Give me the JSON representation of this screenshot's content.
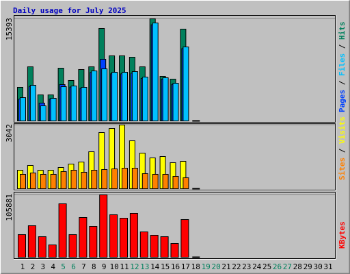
{
  "chart_data": [
    {
      "type": "bar",
      "title": "Daily usage for July 2025",
      "categories": [
        "1",
        "2",
        "3",
        "4",
        "5",
        "6",
        "7",
        "8",
        "9",
        "10",
        "11",
        "12",
        "13",
        "14",
        "15",
        "16",
        "17",
        "18",
        "19",
        "20",
        "21",
        "22",
        "23",
        "24",
        "25",
        "26",
        "27",
        "28",
        "29",
        "30",
        "31"
      ],
      "category_colors": [
        "#000000",
        "#000000",
        "#000000",
        "#000000",
        "#00805c",
        "#00805c",
        "#000000",
        "#000000",
        "#000000",
        "#000000",
        "#000000",
        "#00805c",
        "#00805c",
        "#000000",
        "#000000",
        "#000000",
        "#000000",
        "#000000",
        "#00805c",
        "#00805c",
        "#000000",
        "#000000",
        "#000000",
        "#000000",
        "#000000",
        "#00805c",
        "#00805c",
        "#000000",
        "#000000",
        "#000000",
        "#000000"
      ],
      "ylim": [
        0,
        15393
      ],
      "yticks": [
        15393
      ],
      "legend_separator": " / ",
      "series": [
        {
          "name": "Pages",
          "color": "#0040ff",
          "values": [
            3300,
            5200,
            2686,
            3300,
            5476,
            5100,
            4900,
            7300,
            9298,
            7100,
            7100,
            7200,
            6400,
            14500,
            6300,
            5500,
            10900,
            null,
            null,
            null,
            null,
            null,
            null,
            null,
            null,
            null,
            null,
            null,
            null,
            null,
            null
          ]
        },
        {
          "name": "Files",
          "color": "#00c0ff",
          "values": [
            3512,
            5372,
            2273,
            3409,
            5165,
            5269,
            5062,
            7541,
            7851,
            7335,
            7335,
            7438,
            6612,
            14773,
            6508,
            5682,
            11157,
            null,
            null,
            null,
            null,
            null,
            null,
            null,
            null,
            null,
            null,
            null,
            null,
            null,
            null
          ]
        },
        {
          "name": "Hits",
          "color": "#00805c",
          "values": [
            5062,
            8161,
            3926,
            3926,
            7955,
            6095,
            7748,
            8161,
            13947,
            9814,
            9814,
            9607,
            8161,
            15393,
            6715,
            6302,
            13843,
            null,
            null,
            null,
            null,
            null,
            null,
            null,
            null,
            null,
            null,
            null,
            null,
            null,
            null
          ]
        }
      ]
    },
    {
      "type": "bar",
      "ylim": [
        0,
        3042
      ],
      "yticks": [
        3042
      ],
      "legend_separator": " / ",
      "series": [
        {
          "name": "Sites",
          "color": "#ff8000",
          "values": [
            687,
            752,
            687,
            687,
            818,
            883,
            785,
            883,
            916,
            948,
            981,
            981,
            720,
            687,
            687,
            589,
            523,
            null,
            null,
            null,
            null,
            null,
            null,
            null,
            null,
            null,
            null,
            null,
            null,
            null,
            null
          ]
        },
        {
          "name": "Visits",
          "color": "#ffff00",
          "values": [
            883,
            1112,
            883,
            883,
            1014,
            1178,
            1276,
            1766,
            2682,
            2878,
            3042,
            2289,
            1701,
            1472,
            1537,
            1243,
            1308,
            null,
            null,
            null,
            null,
            null,
            null,
            null,
            null,
            null,
            null,
            null,
            null,
            null,
            null
          ]
        }
      ]
    },
    {
      "type": "bar",
      "ylim": [
        0,
        105881
      ],
      "yticks": [
        105881
      ],
      "series": [
        {
          "name": "KBytes",
          "color": "#ff0000",
          "values": [
            38386,
            53512,
            34896,
            20944,
            90756,
            38386,
            67476,
            52348,
            105881,
            72130,
            66313,
            74457,
            43040,
            37222,
            34896,
            23262,
            63986,
            null,
            null,
            null,
            null,
            null,
            null,
            null,
            null,
            null,
            null,
            null,
            null,
            null,
            null
          ]
        }
      ]
    }
  ]
}
